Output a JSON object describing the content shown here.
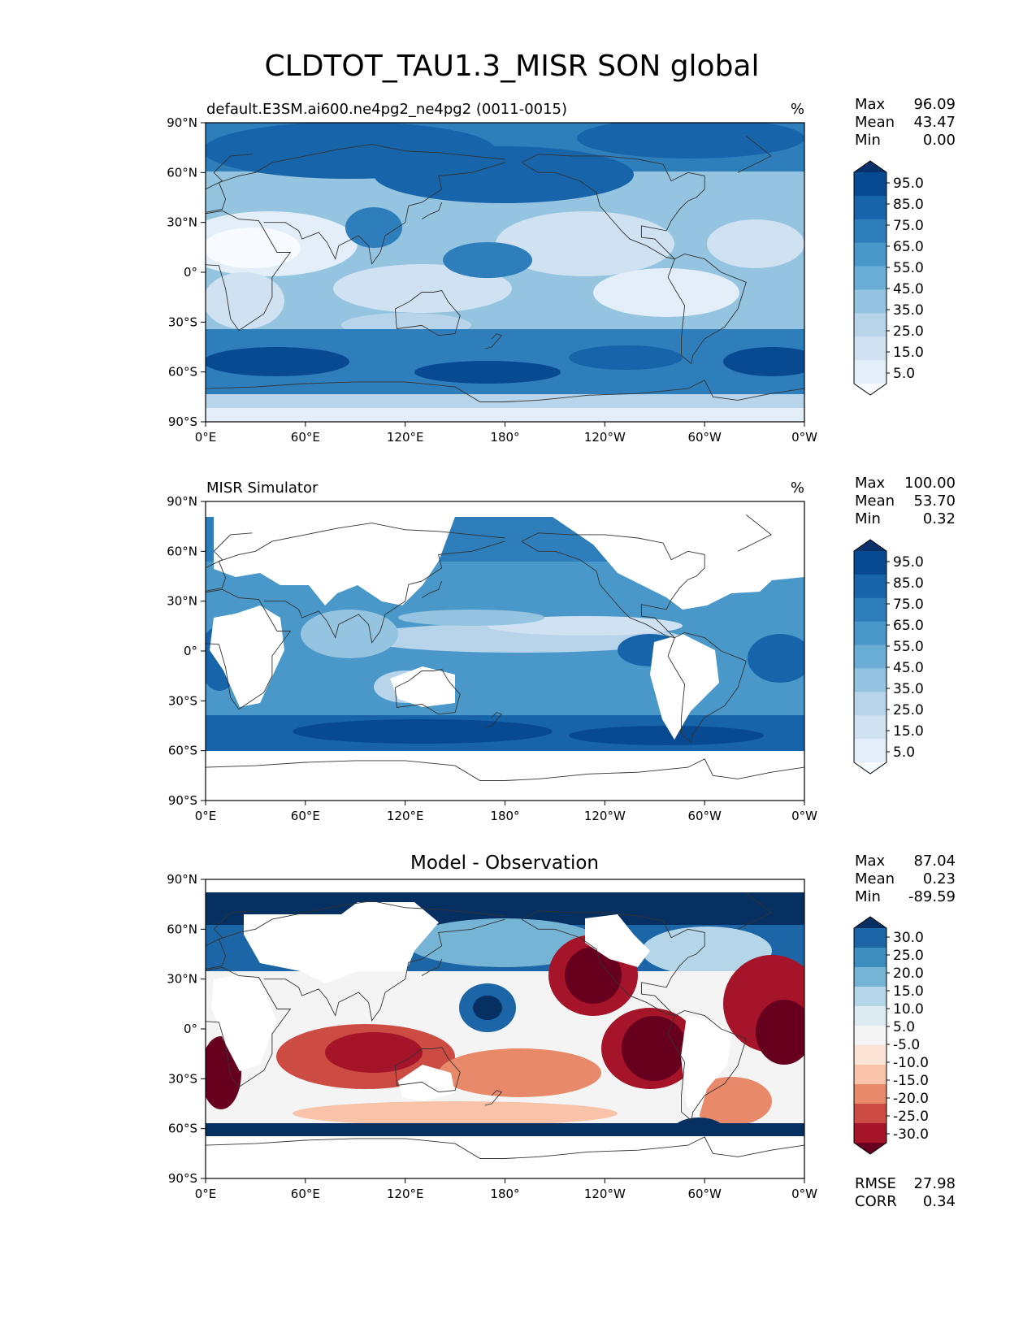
{
  "title": "CLDTOT_TAU1.3_MISR SON global",
  "lon_ticks": [
    "0°E",
    "60°E",
    "120°E",
    "180°",
    "120°W",
    "60°W",
    "0°W"
  ],
  "lat_ticks": [
    "90°N",
    "60°N",
    "30°N",
    "0°",
    "30°S",
    "60°S",
    "90°S"
  ],
  "panels": [
    {
      "left_title": "default.E3SM.ai600.ne4pg2_ne4pg2 (0011-0015)",
      "right_title": "%",
      "center_title": "",
      "stats": [
        {
          "label": "Max",
          "value": "96.09"
        },
        {
          "label": "Mean",
          "value": "43.47"
        },
        {
          "label": "Min",
          "value": "0.00"
        }
      ],
      "colorbar_ticks": [
        "95.0",
        "85.0",
        "75.0",
        "65.0",
        "55.0",
        "45.0",
        "35.0",
        "25.0",
        "15.0",
        "5.0"
      ],
      "colormap": "Blues"
    },
    {
      "left_title": "MISR Simulator",
      "right_title": "%",
      "center_title": "",
      "stats": [
        {
          "label": "Max",
          "value": "100.00"
        },
        {
          "label": "Mean",
          "value": "53.70"
        },
        {
          "label": "Min",
          "value": "0.32"
        }
      ],
      "colorbar_ticks": [
        "95.0",
        "85.0",
        "75.0",
        "65.0",
        "55.0",
        "45.0",
        "35.0",
        "25.0",
        "15.0",
        "5.0"
      ],
      "colormap": "Blues"
    },
    {
      "left_title": "",
      "right_title": "",
      "center_title": "Model - Observation",
      "stats": [
        {
          "label": "Max",
          "value": "87.04"
        },
        {
          "label": "Mean",
          "value": "0.23"
        },
        {
          "label": "Min",
          "value": "-89.59"
        }
      ],
      "colorbar_ticks": [
        "30.0",
        "25.0",
        "20.0",
        "15.0",
        "10.0",
        "5.0",
        "-5.0",
        "-10.0",
        "-15.0",
        "-20.0",
        "-25.0",
        "-30.0"
      ],
      "colormap": "RdBu",
      "extra_stats": [
        {
          "label": "RMSE",
          "value": "27.98"
        },
        {
          "label": "CORR",
          "value": "0.34"
        }
      ]
    }
  ],
  "colors": {
    "blues": [
      "#f7fbff",
      "#e3eef9",
      "#d0e1f2",
      "#b7d4ea",
      "#94c4df",
      "#6aaed6",
      "#4a98c9",
      "#2e7ebc",
      "#1764ab",
      "#084a91",
      "#08306b"
    ],
    "rdbu": [
      "#67001f",
      "#a51429",
      "#cc4c44",
      "#e8896a",
      "#f9c3a9",
      "#fbe3d5",
      "#f4f4f4",
      "#dceaf2",
      "#b4d6e8",
      "#76b4d5",
      "#3e8fc0",
      "#1c65a7",
      "#053061"
    ],
    "land": "#ffffff",
    "coast": "#333333"
  }
}
